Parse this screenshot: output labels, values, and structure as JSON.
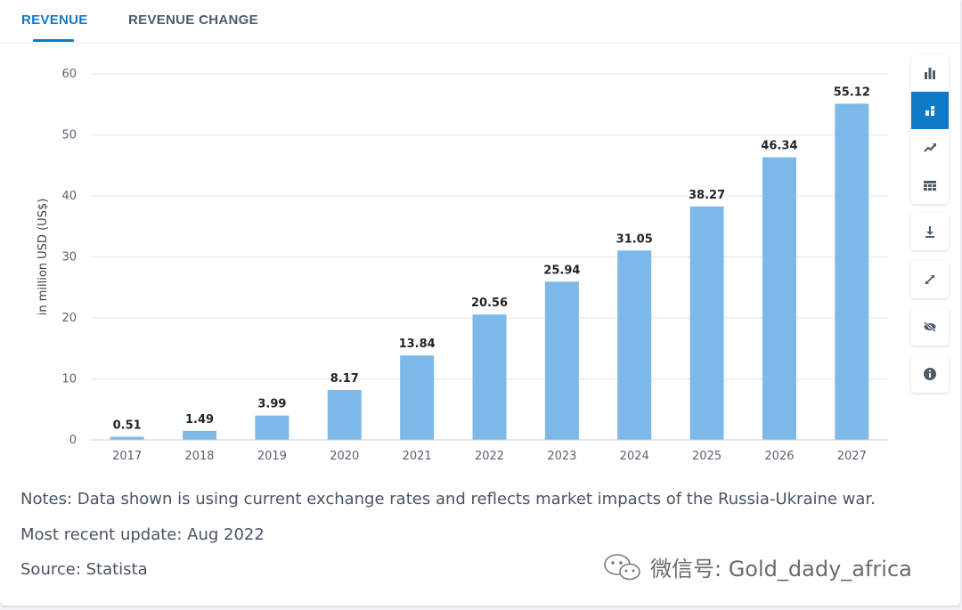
{
  "tabs": [
    {
      "label": "REVENUE",
      "active": true
    },
    {
      "label": "REVENUE CHANGE",
      "active": false
    }
  ],
  "toolbar": {
    "icons": [
      "bar-chart-icon",
      "stacked-chart-icon",
      "line-chart-icon",
      "table-icon",
      "download-icon",
      "fullscreen-icon",
      "hide-icon",
      "info-icon"
    ],
    "accent_color": "#0f7ac6"
  },
  "chart_data": {
    "type": "bar",
    "categories": [
      "2017",
      "2018",
      "2019",
      "2020",
      "2021",
      "2022",
      "2023",
      "2024",
      "2025",
      "2026",
      "2027"
    ],
    "values": [
      0.51,
      1.49,
      3.99,
      8.17,
      13.84,
      20.56,
      25.94,
      31.05,
      38.27,
      46.34,
      55.12
    ],
    "value_labels": [
      "0.51",
      "1.49",
      "3.99",
      "8.17",
      "13.84",
      "20.56",
      "25.94",
      "31.05",
      "38.27",
      "46.34",
      "55.12"
    ],
    "ylabel": "in million USD (US$)",
    "xlabel": "",
    "ylim": [
      0,
      60
    ],
    "yticks": [
      0,
      10,
      20,
      30,
      40,
      50,
      60
    ],
    "grid": true,
    "bar_color": "#7cb9e8"
  },
  "notes": {
    "text": "Notes: Data shown is using current exchange rates and reflects market impacts of the Russia-Ukraine war.",
    "update": "Most recent update: Aug 2022",
    "source": "Source: Statista"
  },
  "watermark": {
    "text": "微信号: Gold_dady_africa"
  }
}
